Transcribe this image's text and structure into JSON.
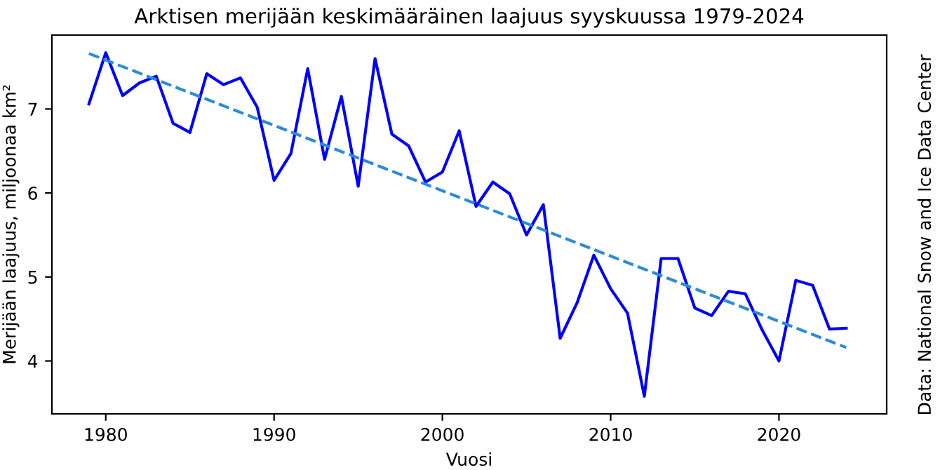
{
  "chart_data": {
    "type": "line",
    "title": "Arktisen merijään keskimääräinen laajuus syyskuussa 1979-2024",
    "xlabel": "Vuosi",
    "ylabel": "Merijään laajuus, miljoonaa km²",
    "annotations": [
      "Data: National Snow and Ice Data Center"
    ],
    "x": [
      1979,
      1980,
      1981,
      1982,
      1983,
      1984,
      1985,
      1986,
      1987,
      1988,
      1989,
      1990,
      1991,
      1992,
      1993,
      1994,
      1995,
      1996,
      1997,
      1998,
      1999,
      2000,
      2001,
      2002,
      2003,
      2004,
      2005,
      2006,
      2007,
      2008,
      2009,
      2010,
      2011,
      2012,
      2013,
      2014,
      2015,
      2016,
      2017,
      2018,
      2019,
      2020,
      2021,
      2022,
      2023,
      2024
    ],
    "series": [
      {
        "color": "#0000ff",
        "line_style": "solid",
        "values": [
          7.06,
          7.67,
          7.16,
          7.31,
          7.39,
          6.83,
          6.72,
          7.42,
          7.29,
          7.37,
          7.02,
          6.15,
          6.47,
          7.48,
          6.4,
          7.15,
          6.08,
          7.6,
          6.7,
          6.56,
          6.13,
          6.25,
          6.74,
          5.84,
          6.13,
          5.99,
          5.5,
          5.86,
          4.27,
          4.69,
          5.26,
          4.86,
          4.57,
          3.58,
          5.22,
          5.22,
          4.63,
          4.54,
          4.83,
          4.8,
          4.37,
          4.0,
          4.96,
          4.9,
          4.38,
          4.39
        ]
      },
      {
        "color": "#2b8cd6",
        "line_style": "dashed",
        "x": [
          1979,
          2024
        ],
        "values": [
          7.66,
          4.16
        ]
      }
    ],
    "xlim": [
      1976.8,
      2026.4
    ],
    "ylim": [
      3.37,
      7.88
    ],
    "xticks": [
      1980,
      1990,
      2000,
      2010,
      2020
    ],
    "yticks": [
      4,
      5,
      6,
      7
    ],
    "grid": false,
    "legend": false,
    "marker": "none"
  }
}
